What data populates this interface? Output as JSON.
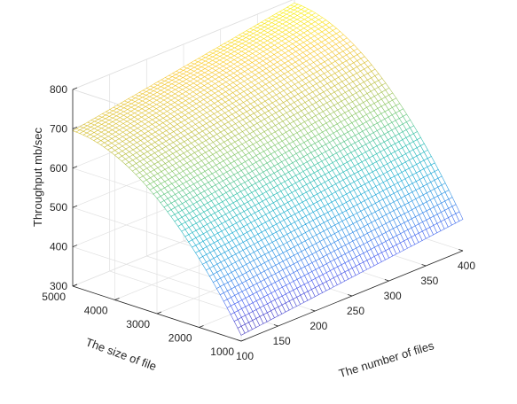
{
  "chart_data": {
    "type": "surface",
    "colormap": "parula",
    "grid": true,
    "xlabel": "The number of files",
    "ylabel": "The size of file",
    "zlabel": "Throughput mb/sec",
    "xlim": [
      100,
      400
    ],
    "ylim": [
      1000,
      5000
    ],
    "zlim": [
      300,
      800
    ],
    "x_ticks": [
      "100",
      "150",
      "200",
      "250",
      "300",
      "350",
      "400"
    ],
    "y_ticks": [
      "1000",
      "2000",
      "3000",
      "4000",
      "5000"
    ],
    "z_ticks": [
      "300",
      "400",
      "500",
      "600",
      "700",
      "800"
    ],
    "corner_values": [
      {
        "x": 100,
        "y": 1000,
        "z": 315
      },
      {
        "x": 400,
        "y": 1000,
        "z": 380
      },
      {
        "x": 100,
        "y": 5000,
        "z": 695
      },
      {
        "x": 400,
        "y": 5000,
        "z": 790
      }
    ]
  }
}
